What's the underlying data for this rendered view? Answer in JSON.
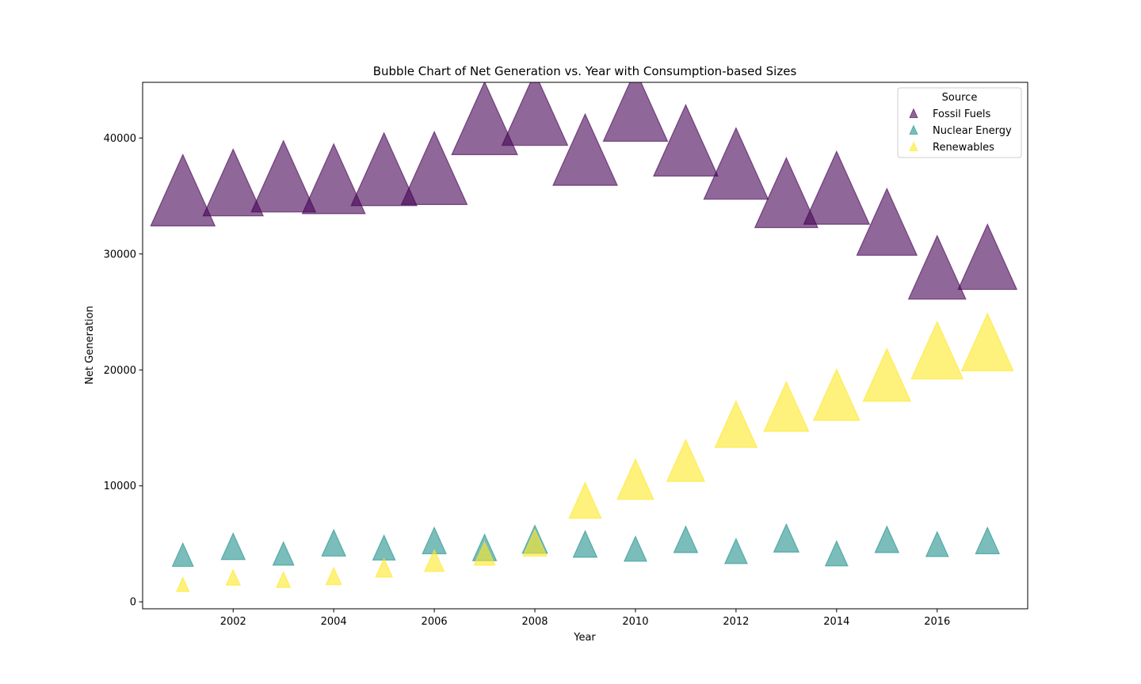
{
  "chart_data": {
    "type": "scatter",
    "title": "Bubble Chart of Net Generation vs. Year with Consumption-based Sizes",
    "xlabel": "Year",
    "ylabel": "Net Generation",
    "xlim": [
      2000.2,
      2017.8
    ],
    "ylim": [
      -600,
      44800
    ],
    "xticks": [
      2002,
      2004,
      2006,
      2008,
      2010,
      2012,
      2014,
      2016
    ],
    "yticks": [
      0,
      10000,
      20000,
      30000,
      40000
    ],
    "grid": false,
    "marker": "triangle-up",
    "legend": {
      "title": "Source",
      "position": "top-right"
    },
    "x": [
      2001,
      2002,
      2003,
      2004,
      2005,
      2006,
      2007,
      2008,
      2009,
      2010,
      2011,
      2012,
      2013,
      2014,
      2015,
      2016,
      2017
    ],
    "series": [
      {
        "name": "Fossil Fuels",
        "color": "#440154",
        "values": [
          35000,
          35700,
          36200,
          36000,
          36800,
          36900,
          41200,
          42000,
          38500,
          42300,
          39300,
          37300,
          34800,
          35200,
          32300,
          28400,
          29300
        ],
        "relative_size": [
          0.92,
          0.86,
          0.92,
          0.9,
          0.94,
          0.94,
          0.94,
          0.94,
          0.92,
          0.92,
          0.92,
          0.92,
          0.9,
          0.94,
          0.86,
          0.82,
          0.84
        ]
      },
      {
        "name": "Nuclear Energy",
        "color": "#21918c",
        "values": [
          3900,
          4600,
          4000,
          4900,
          4500,
          5100,
          4500,
          5200,
          4800,
          4400,
          5200,
          4200,
          5300,
          4000,
          5200,
          4800,
          5100
        ],
        "relative_size": [
          0.3,
          0.34,
          0.3,
          0.34,
          0.32,
          0.34,
          0.34,
          0.36,
          0.34,
          0.32,
          0.34,
          0.32,
          0.36,
          0.32,
          0.34,
          0.32,
          0.34
        ]
      },
      {
        "name": "Renewables",
        "color": "#fde725",
        "values": [
          1400,
          2000,
          1800,
          2100,
          2800,
          3400,
          4000,
          4900,
          8500,
          10300,
          11900,
          15000,
          16500,
          17500,
          19200,
          21300,
          22000
        ],
        "relative_size": [
          0.18,
          0.2,
          0.2,
          0.22,
          0.24,
          0.28,
          0.3,
          0.34,
          0.46,
          0.52,
          0.54,
          0.6,
          0.64,
          0.66,
          0.68,
          0.74,
          0.74
        ]
      }
    ]
  }
}
